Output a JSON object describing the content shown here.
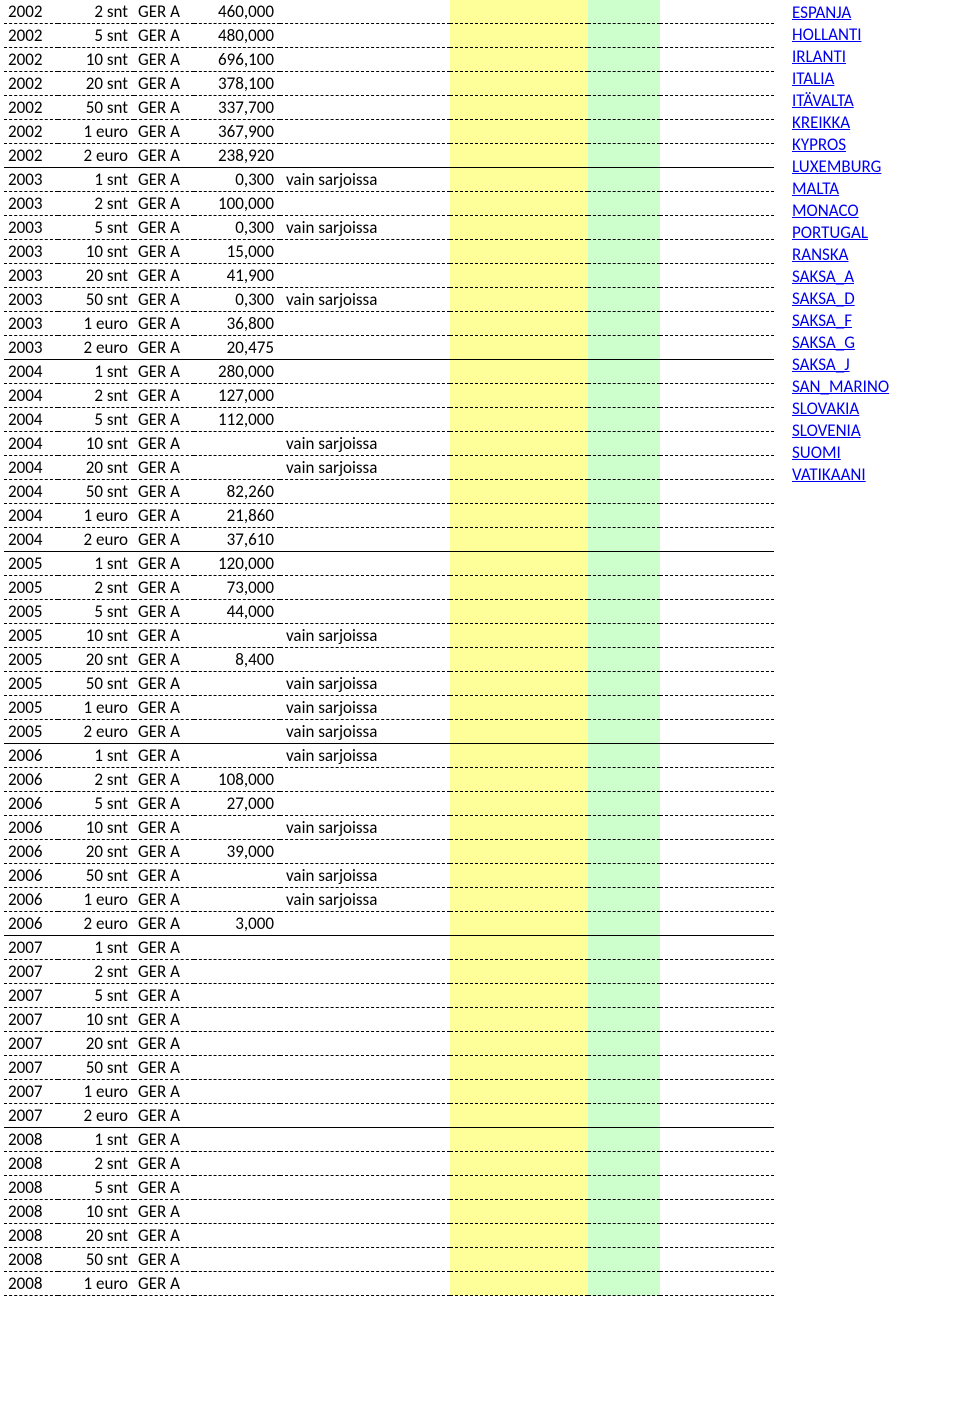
{
  "colors": {
    "yellow": "#ffff99",
    "green": "#ccffcc",
    "link": "#0000ee",
    "text": "#000000",
    "bg": "#ffffff"
  },
  "rows": [
    {
      "year": "2002",
      "denom": "2 snt",
      "ctry": "GER A",
      "amt": "460,000",
      "note": ""
    },
    {
      "year": "2002",
      "denom": "5 snt",
      "ctry": "GER A",
      "amt": "480,000",
      "note": ""
    },
    {
      "year": "2002",
      "denom": "10 snt",
      "ctry": "GER A",
      "amt": "696,100",
      "note": ""
    },
    {
      "year": "2002",
      "denom": "20 snt",
      "ctry": "GER A",
      "amt": "378,100",
      "note": ""
    },
    {
      "year": "2002",
      "denom": "50 snt",
      "ctry": "GER A",
      "amt": "337,700",
      "note": ""
    },
    {
      "year": "2002",
      "denom": "1 euro",
      "ctry": "GER A",
      "amt": "367,900",
      "note": ""
    },
    {
      "year": "2002",
      "denom": "2 euro",
      "ctry": "GER A",
      "amt": "238,920",
      "note": "",
      "yearEnd": true
    },
    {
      "year": "2003",
      "denom": "1 snt",
      "ctry": "GER A",
      "amt": "0,300",
      "note": "vain sarjoissa"
    },
    {
      "year": "2003",
      "denom": "2 snt",
      "ctry": "GER A",
      "amt": "100,000",
      "note": ""
    },
    {
      "year": "2003",
      "denom": "5 snt",
      "ctry": "GER A",
      "amt": "0,300",
      "note": "vain sarjoissa"
    },
    {
      "year": "2003",
      "denom": "10 snt",
      "ctry": "GER A",
      "amt": "15,000",
      "note": ""
    },
    {
      "year": "2003",
      "denom": "20 snt",
      "ctry": "GER A",
      "amt": "41,900",
      "note": ""
    },
    {
      "year": "2003",
      "denom": "50 snt",
      "ctry": "GER A",
      "amt": "0,300",
      "note": "vain sarjoissa"
    },
    {
      "year": "2003",
      "denom": "1 euro",
      "ctry": "GER A",
      "amt": "36,800",
      "note": ""
    },
    {
      "year": "2003",
      "denom": "2 euro",
      "ctry": "GER A",
      "amt": "20,475",
      "note": "",
      "yearEnd": true
    },
    {
      "year": "2004",
      "denom": "1 snt",
      "ctry": "GER A",
      "amt": "280,000",
      "note": ""
    },
    {
      "year": "2004",
      "denom": "2 snt",
      "ctry": "GER A",
      "amt": "127,000",
      "note": ""
    },
    {
      "year": "2004",
      "denom": "5 snt",
      "ctry": "GER A",
      "amt": "112,000",
      "note": ""
    },
    {
      "year": "2004",
      "denom": "10 snt",
      "ctry": "GER A",
      "amt": "",
      "note": "vain sarjoissa"
    },
    {
      "year": "2004",
      "denom": "20 snt",
      "ctry": "GER A",
      "amt": "",
      "note": "vain sarjoissa"
    },
    {
      "year": "2004",
      "denom": "50 snt",
      "ctry": "GER A",
      "amt": "82,260",
      "note": ""
    },
    {
      "year": "2004",
      "denom": "1 euro",
      "ctry": "GER A",
      "amt": "21,860",
      "note": ""
    },
    {
      "year": "2004",
      "denom": "2 euro",
      "ctry": "GER A",
      "amt": "37,610",
      "note": "",
      "yearEnd": true
    },
    {
      "year": "2005",
      "denom": "1 snt",
      "ctry": "GER A",
      "amt": "120,000",
      "note": ""
    },
    {
      "year": "2005",
      "denom": "2 snt",
      "ctry": "GER A",
      "amt": "73,000",
      "note": ""
    },
    {
      "year": "2005",
      "denom": "5 snt",
      "ctry": "GER A",
      "amt": "44,000",
      "note": ""
    },
    {
      "year": "2005",
      "denom": "10 snt",
      "ctry": "GER A",
      "amt": "",
      "note": "vain sarjoissa"
    },
    {
      "year": "2005",
      "denom": "20 snt",
      "ctry": "GER A",
      "amt": "8,400",
      "note": ""
    },
    {
      "year": "2005",
      "denom": "50 snt",
      "ctry": "GER A",
      "amt": "",
      "note": "vain sarjoissa"
    },
    {
      "year": "2005",
      "denom": "1 euro",
      "ctry": "GER A",
      "amt": "",
      "note": "vain sarjoissa"
    },
    {
      "year": "2005",
      "denom": "2 euro",
      "ctry": "GER A",
      "amt": "",
      "note": "vain sarjoissa",
      "yearEnd": true
    },
    {
      "year": "2006",
      "denom": "1 snt",
      "ctry": "GER A",
      "amt": "",
      "note": "vain sarjoissa"
    },
    {
      "year": "2006",
      "denom": "2 snt",
      "ctry": "GER A",
      "amt": "108,000",
      "note": ""
    },
    {
      "year": "2006",
      "denom": "5 snt",
      "ctry": "GER A",
      "amt": "27,000",
      "note": ""
    },
    {
      "year": "2006",
      "denom": "10 snt",
      "ctry": "GER A",
      "amt": "",
      "note": "vain sarjoissa"
    },
    {
      "year": "2006",
      "denom": "20 snt",
      "ctry": "GER A",
      "amt": "39,000",
      "note": ""
    },
    {
      "year": "2006",
      "denom": "50 snt",
      "ctry": "GER A",
      "amt": "",
      "note": "vain sarjoissa"
    },
    {
      "year": "2006",
      "denom": "1 euro",
      "ctry": "GER A",
      "amt": "",
      "note": "vain sarjoissa"
    },
    {
      "year": "2006",
      "denom": "2 euro",
      "ctry": "GER A",
      "amt": "3,000",
      "note": "",
      "yearEnd": true
    },
    {
      "year": "2007",
      "denom": "1 snt",
      "ctry": "GER A",
      "amt": "",
      "note": ""
    },
    {
      "year": "2007",
      "denom": "2 snt",
      "ctry": "GER A",
      "amt": "",
      "note": ""
    },
    {
      "year": "2007",
      "denom": "5 snt",
      "ctry": "GER A",
      "amt": "",
      "note": ""
    },
    {
      "year": "2007",
      "denom": "10 snt",
      "ctry": "GER A",
      "amt": "",
      "note": ""
    },
    {
      "year": "2007",
      "denom": "20 snt",
      "ctry": "GER A",
      "amt": "",
      "note": ""
    },
    {
      "year": "2007",
      "denom": "50 snt",
      "ctry": "GER A",
      "amt": "",
      "note": ""
    },
    {
      "year": "2007",
      "denom": "1 euro",
      "ctry": "GER A",
      "amt": "",
      "note": ""
    },
    {
      "year": "2007",
      "denom": "2 euro",
      "ctry": "GER A",
      "amt": "",
      "note": "",
      "yearEnd": true
    },
    {
      "year": "2008",
      "denom": "1 snt",
      "ctry": "GER A",
      "amt": "",
      "note": ""
    },
    {
      "year": "2008",
      "denom": "2 snt",
      "ctry": "GER A",
      "amt": "",
      "note": ""
    },
    {
      "year": "2008",
      "denom": "5 snt",
      "ctry": "GER A",
      "amt": "",
      "note": ""
    },
    {
      "year": "2008",
      "denom": "10 snt",
      "ctry": "GER A",
      "amt": "",
      "note": ""
    },
    {
      "year": "2008",
      "denom": "20 snt",
      "ctry": "GER A",
      "amt": "",
      "note": ""
    },
    {
      "year": "2008",
      "denom": "50 snt",
      "ctry": "GER A",
      "amt": "",
      "note": ""
    },
    {
      "year": "2008",
      "denom": "1 euro",
      "ctry": "GER A",
      "amt": "",
      "note": ""
    }
  ],
  "links": [
    "ESPANJA",
    "HOLLANTI",
    "IRLANTI",
    "ITALIA",
    "ITÄVALTA",
    "KREIKKA",
    "KYPROS",
    "LUXEMBURG",
    "MALTA",
    "MONACO",
    "PORTUGAL",
    "RANSKA",
    "SAKSA_A",
    "SAKSA_D",
    "SAKSA_F",
    "SAKSA_G",
    "SAKSA_J",
    "SAN_MARINO",
    "SLOVAKIA",
    "SLOVENIA",
    "SUOMI",
    "VATIKAANI"
  ]
}
